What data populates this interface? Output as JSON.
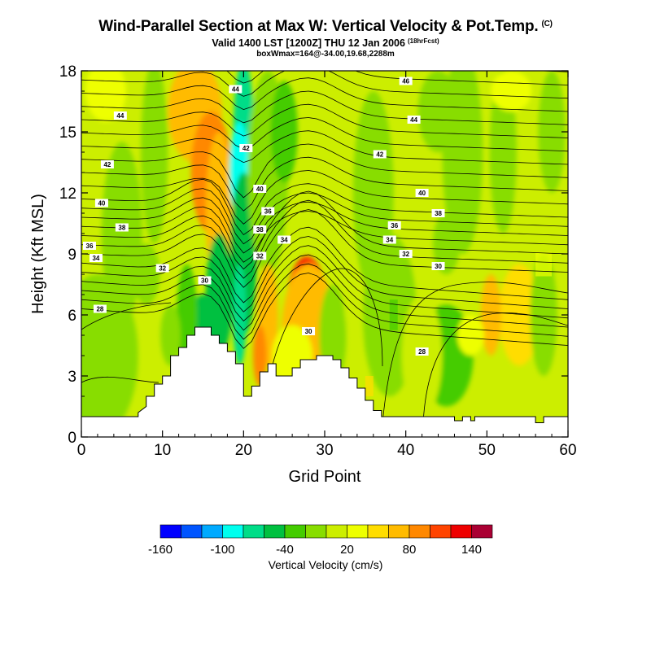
{
  "header": {
    "title": "Wind-Parallel Section at Max W: Vertical Velocity & Pot.Temp.",
    "title_mark": "(C)",
    "subtitle": "Valid 1400 LST [1200Z] THU 12 Jan 2006",
    "subtitle_mark": "(18hrFcst)",
    "subtitle2": "boxWmax=164@-34.00,19.68,2288m"
  },
  "chart_data": {
    "type": "heatmap",
    "xlabel": "Grid Point",
    "ylabel": "Height (Kft MSL)",
    "xlim": [
      0,
      60
    ],
    "ylim": [
      0,
      18
    ],
    "xticks": [
      0,
      10,
      20,
      30,
      40,
      50,
      60
    ],
    "yticks": [
      0,
      3,
      6,
      9,
      12,
      15,
      18
    ],
    "colorbar": {
      "title": "Vertical Velocity (cm/s)",
      "tick_labels": [
        "-160",
        "-100",
        "-40",
        "20",
        "80",
        "140"
      ],
      "colors": [
        "#0000ff",
        "#0055ff",
        "#00aaff",
        "#00ffee",
        "#00dd88",
        "#00c040",
        "#44cc00",
        "#88dd00",
        "#ccee00",
        "#eeff00",
        "#ffdd00",
        "#ffbb00",
        "#ff8800",
        "#ff4400",
        "#ee0000",
        "#aa0033"
      ]
    },
    "theta_contour_labels": [
      {
        "x": 2.3,
        "y": 6.3,
        "text": "28"
      },
      {
        "x": 1.0,
        "y": 9.4,
        "text": "36"
      },
      {
        "x": 1.8,
        "y": 8.8,
        "text": "34"
      },
      {
        "x": 2.5,
        "y": 11.5,
        "text": "40"
      },
      {
        "x": 3.2,
        "y": 13.4,
        "text": "42"
      },
      {
        "x": 4.8,
        "y": 15.8,
        "text": "44"
      },
      {
        "x": 5.0,
        "y": 10.3,
        "text": "38"
      },
      {
        "x": 10.0,
        "y": 8.3,
        "text": "32"
      },
      {
        "x": 15.2,
        "y": 7.7,
        "text": "30"
      },
      {
        "x": 19.0,
        "y": 17.1,
        "text": "44"
      },
      {
        "x": 20.3,
        "y": 14.2,
        "text": "42"
      },
      {
        "x": 22.0,
        "y": 12.2,
        "text": "40"
      },
      {
        "x": 23.0,
        "y": 11.1,
        "text": "36"
      },
      {
        "x": 22.0,
        "y": 10.2,
        "text": "38"
      },
      {
        "x": 22.0,
        "y": 8.9,
        "text": "32"
      },
      {
        "x": 25.0,
        "y": 9.7,
        "text": "34"
      },
      {
        "x": 28.0,
        "y": 5.2,
        "text": "30"
      },
      {
        "x": 40.0,
        "y": 17.5,
        "text": "46"
      },
      {
        "x": 41.0,
        "y": 15.6,
        "text": "44"
      },
      {
        "x": 36.8,
        "y": 13.9,
        "text": "42"
      },
      {
        "x": 42.0,
        "y": 12.0,
        "text": "40"
      },
      {
        "x": 44.0,
        "y": 11.0,
        "text": "38"
      },
      {
        "x": 38.6,
        "y": 10.4,
        "text": "36"
      },
      {
        "x": 38.0,
        "y": 9.7,
        "text": "34"
      },
      {
        "x": 40.0,
        "y": 9.0,
        "text": "32"
      },
      {
        "x": 44.0,
        "y": 8.4,
        "text": "30"
      },
      {
        "x": 42.0,
        "y": 4.2,
        "text": "28"
      }
    ]
  }
}
